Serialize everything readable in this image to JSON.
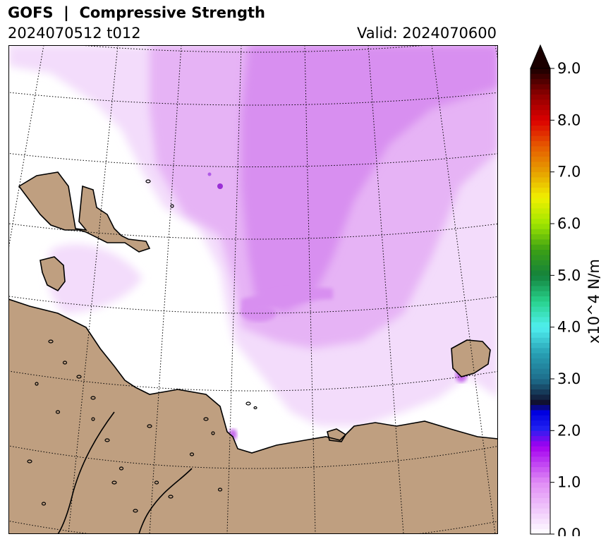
{
  "title": "GOFS  |  Compressive Strength",
  "run_label": "2024070512 t012",
  "valid_label": "Valid: 2024070600",
  "colors": {
    "land": "#bf9f80",
    "coast": "#000000",
    "ice_light": "#f3dcfb",
    "ice_mid": "#e6b3f5",
    "ice_strong": "#d88ff0"
  },
  "colorbar": {
    "unit_label": "x10^4 N/m",
    "ticks": [
      "0.0",
      "1.0",
      "2.0",
      "3.0",
      "4.0",
      "5.0",
      "6.0",
      "7.0",
      "8.0",
      "9.0"
    ],
    "min": 0,
    "max": 9,
    "extend": "max"
  }
}
